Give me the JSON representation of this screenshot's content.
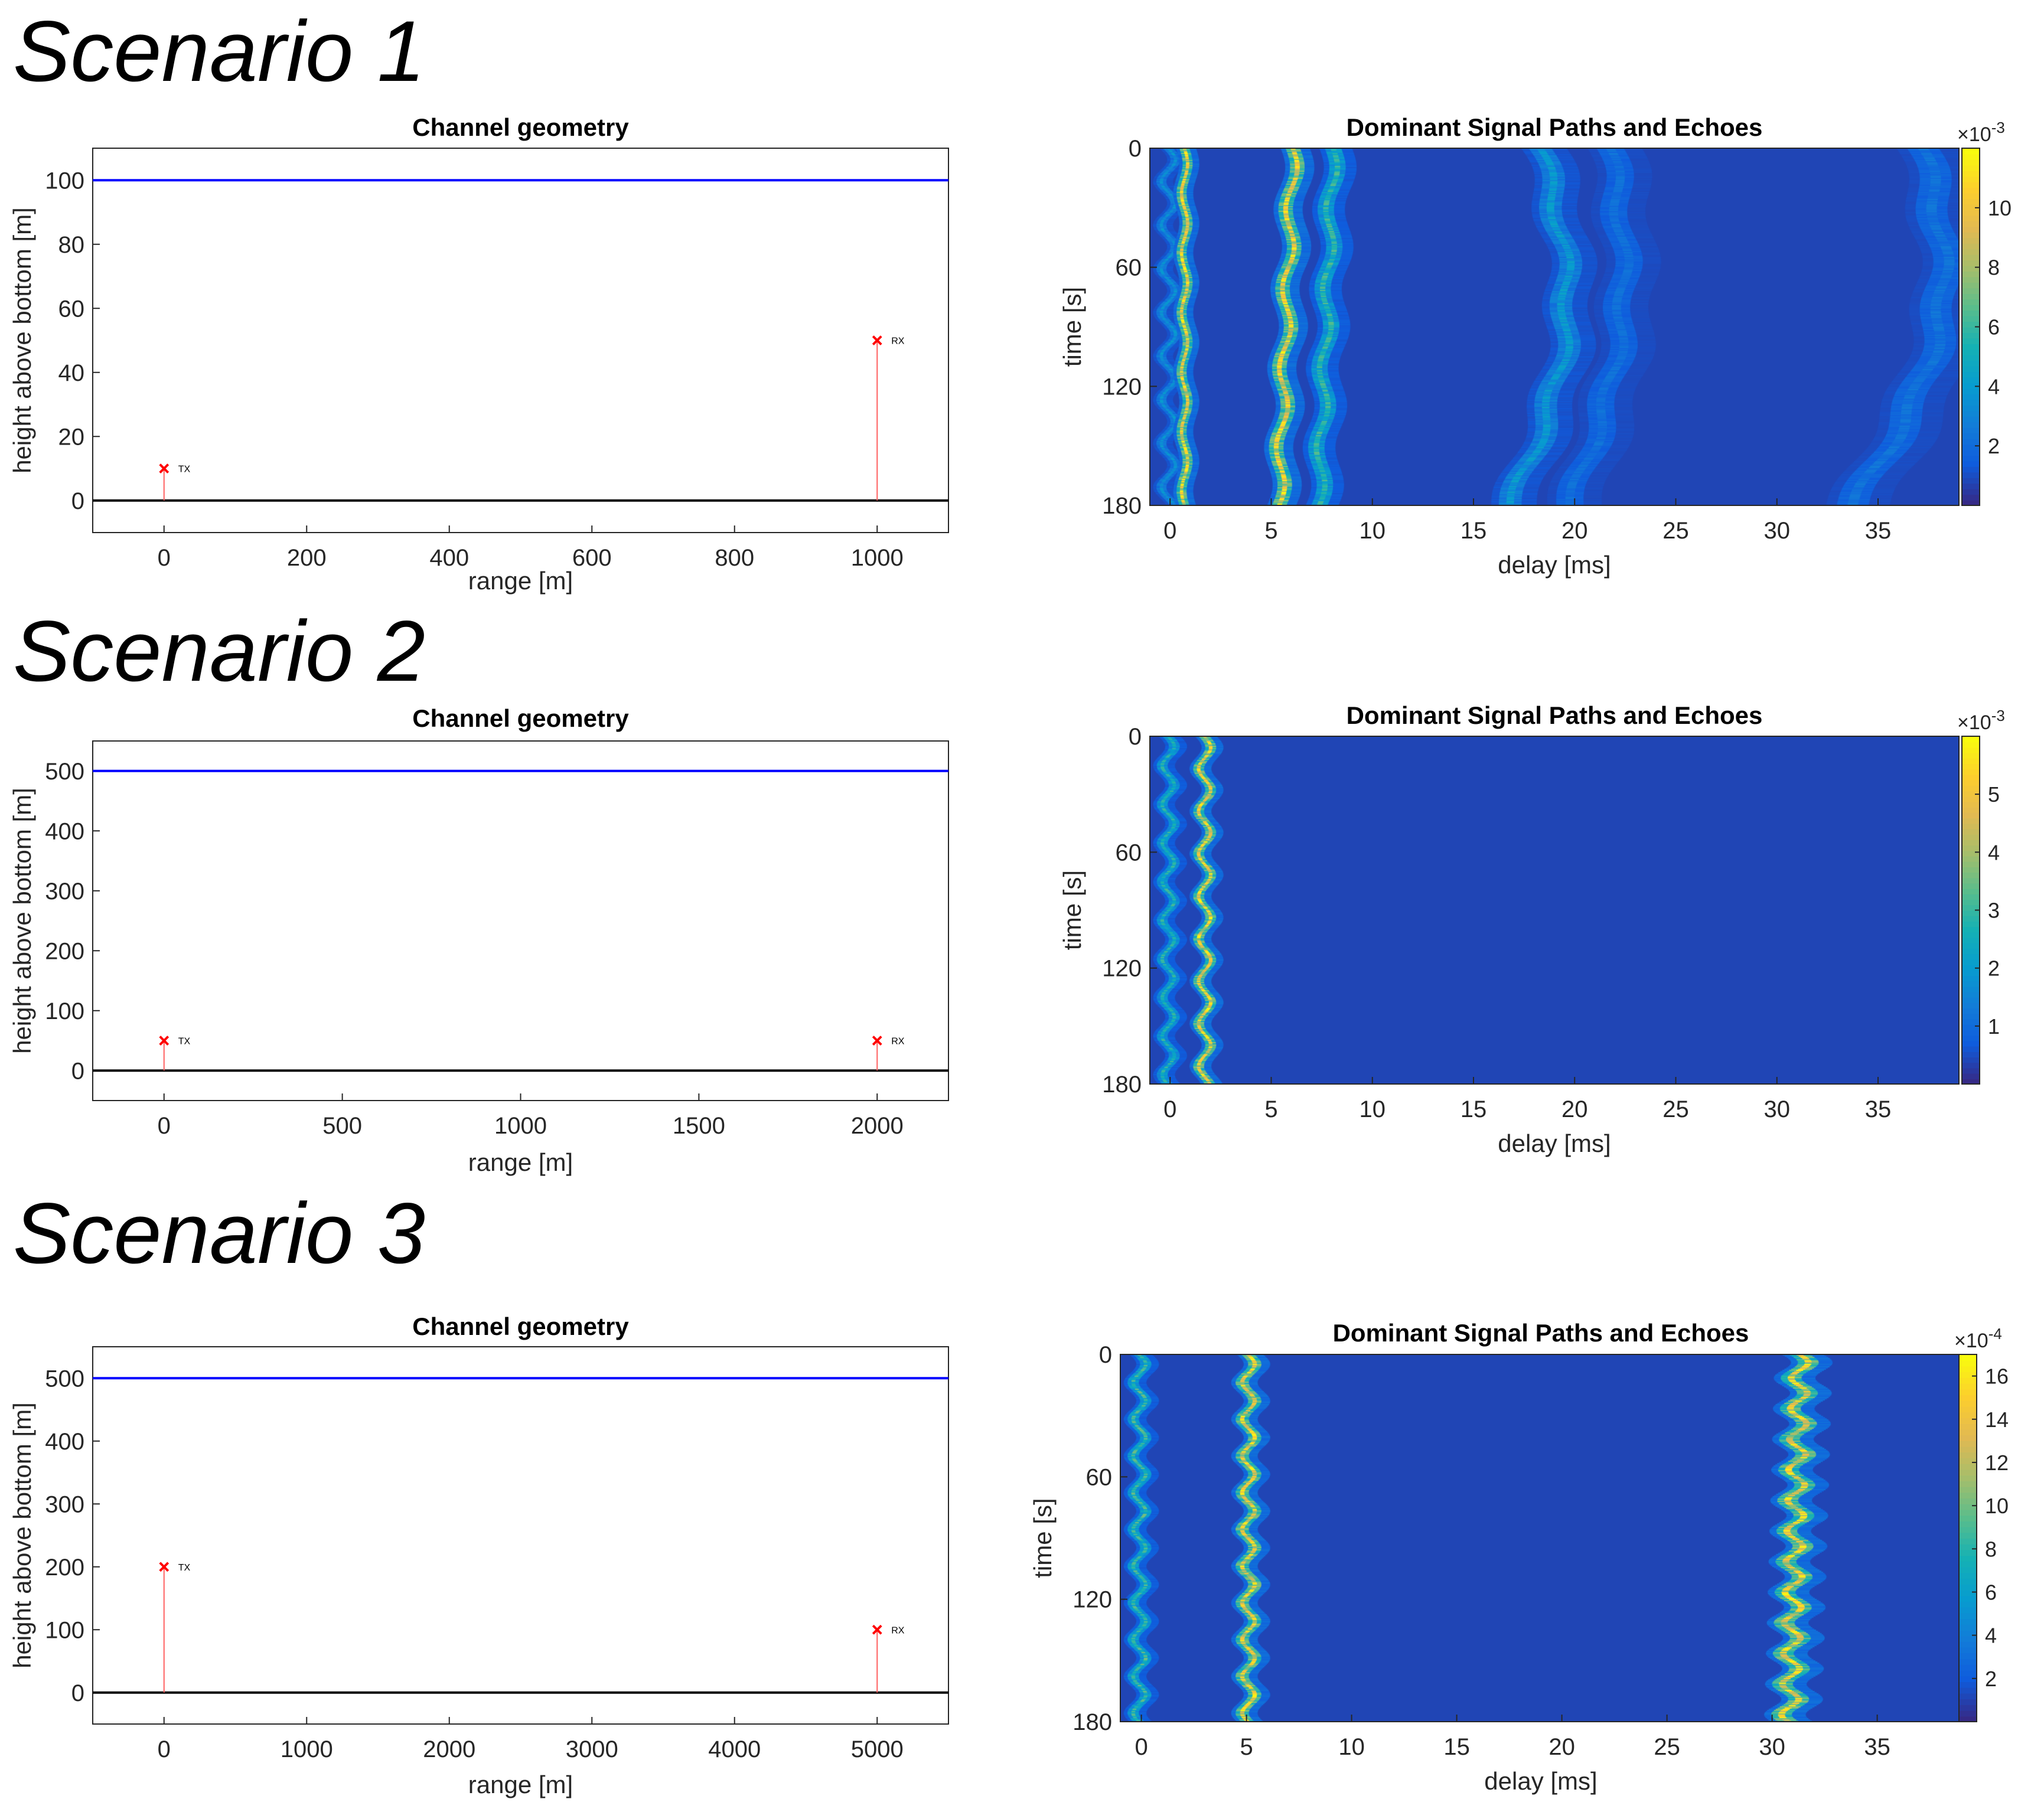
{
  "scenarios": [
    {
      "title": "Scenario 1",
      "geometry": {
        "type": "line",
        "title": "Channel geometry",
        "xlabel": "range [m]",
        "ylabel": "height above bottom [m]",
        "xlim": [
          -100,
          1100
        ],
        "ylim": [
          -10,
          110
        ],
        "xticks": [
          0,
          200,
          400,
          600,
          800,
          1000
        ],
        "yticks": [
          0,
          20,
          40,
          60,
          80,
          100
        ],
        "surface": 100,
        "bottom": 0,
        "tx": {
          "label": "TX",
          "x": 0,
          "y": 10
        },
        "rx": {
          "label": "RX",
          "x": 1000,
          "y": 50
        }
      },
      "heatmap": {
        "type": "heatmap",
        "title": "Dominant Signal Paths and Echoes",
        "xlabel": "delay [ms]",
        "ylabel": "time [s]",
        "xlim": [
          -1,
          39
        ],
        "ylim": [
          0,
          180
        ],
        "xticks": [
          0,
          5,
          10,
          15,
          20,
          25,
          30,
          35
        ],
        "yticks": [
          0,
          60,
          120,
          180
        ],
        "cbar_exp": "×10",
        "cbar_exp_sup": "-3",
        "clim": [
          0,
          0.012
        ],
        "cbar_ticks": [
          2,
          4,
          6,
          8,
          10
        ],
        "paths": [
          {
            "delay0": 0,
            "delay1": 0,
            "amp": 2.0,
            "wob": 0.35,
            "per": 22,
            "w": 0.11
          },
          {
            "delay0": 0.8,
            "delay1": 0.8,
            "amp": 6.5,
            "wob": 0.15,
            "per": 30,
            "w": 0.11
          },
          {
            "delay0": 6.2,
            "delay1": 5.5,
            "amp": 6.5,
            "wob": 0.25,
            "per": 40,
            "w": 0.16
          },
          {
            "delay0": 8.2,
            "delay1": 7.5,
            "amp": 3.5,
            "wob": 0.25,
            "per": 40,
            "w": 0.18
          },
          {
            "delay0": 18.5,
            "delay1": 17.0,
            "amp": 2.2,
            "wob": 0.3,
            "per": 45,
            "w": 0.25,
            "bow": 2.0
          },
          {
            "delay0": 22.0,
            "delay1": 20.0,
            "amp": 1.0,
            "wob": 0.3,
            "per": 45,
            "w": 0.3,
            "bow": 1.5
          },
          {
            "delay0": 37.5,
            "delay1": 34.0,
            "amp": 1.1,
            "wob": 0.3,
            "per": 45,
            "w": 0.35,
            "bow": 2.5
          }
        ]
      }
    },
    {
      "title": "Scenario 2",
      "geometry": {
        "type": "line",
        "title": "Channel geometry",
        "xlabel": "range [m]",
        "ylabel": "height above bottom [m]",
        "xlim": [
          -200,
          2200
        ],
        "ylim": [
          -50,
          550
        ],
        "xticks": [
          0,
          500,
          1000,
          1500,
          2000
        ],
        "yticks": [
          0,
          100,
          200,
          300,
          400,
          500
        ],
        "surface": 500,
        "bottom": 0,
        "tx": {
          "label": "TX",
          "x": 0,
          "y": 50
        },
        "rx": {
          "label": "RX",
          "x": 2000,
          "y": 50
        }
      },
      "heatmap": {
        "type": "heatmap",
        "title": "Dominant Signal Paths and Echoes",
        "xlabel": "delay [ms]",
        "ylabel": "time [s]",
        "xlim": [
          -1,
          39
        ],
        "ylim": [
          0,
          180
        ],
        "xticks": [
          0,
          5,
          10,
          15,
          20,
          25,
          30,
          35
        ],
        "yticks": [
          0,
          60,
          120,
          180
        ],
        "cbar_exp": "×10",
        "cbar_exp_sup": "-3",
        "clim": [
          0,
          0.006
        ],
        "cbar_ticks": [
          1,
          2,
          3,
          4,
          5
        ],
        "paths": [
          {
            "delay0": 0,
            "delay1": 0,
            "amp": 2.0,
            "wob": 0.3,
            "per": 20,
            "w": 0.12
          },
          {
            "delay0": 1.8,
            "delay1": 1.8,
            "amp": 4.0,
            "wob": 0.3,
            "per": 22,
            "w": 0.12
          }
        ]
      }
    },
    {
      "title": "Scenario 3",
      "geometry": {
        "type": "line",
        "title": "Channel geometry",
        "xlabel": "range [m]",
        "ylabel": "height above bottom [m]",
        "xlim": [
          -500,
          5500
        ],
        "ylim": [
          -50,
          550
        ],
        "xticks": [
          0,
          1000,
          2000,
          3000,
          4000,
          5000
        ],
        "yticks": [
          0,
          100,
          200,
          300,
          400,
          500
        ],
        "surface": 500,
        "bottom": 0,
        "tx": {
          "label": "TX",
          "x": 0,
          "y": 200
        },
        "rx": {
          "label": "RX",
          "x": 5000,
          "y": 100
        }
      },
      "heatmap": {
        "type": "heatmap",
        "title": "Dominant Signal Paths and Echoes",
        "xlabel": "delay [ms]",
        "ylabel": "time [s]",
        "xlim": [
          -1,
          39
        ],
        "ylim": [
          0,
          180
        ],
        "xticks": [
          0,
          5,
          10,
          15,
          20,
          25,
          30,
          35
        ],
        "yticks": [
          0,
          60,
          120,
          180
        ],
        "cbar_exp": "×10",
        "cbar_exp_sup": "-4",
        "clim": [
          0,
          0.0017
        ],
        "cbar_ticks": [
          2,
          4,
          6,
          8,
          10,
          12,
          14,
          16
        ],
        "paths": [
          {
            "delay0": 0,
            "delay1": 0,
            "amp": 4.0,
            "wob": 0.3,
            "per": 18,
            "w": 0.12
          },
          {
            "delay0": 5.2,
            "delay1": 5.2,
            "amp": 7.0,
            "wob": 0.3,
            "per": 18,
            "w": 0.14
          },
          {
            "delay0": 31.5,
            "delay1": 31.0,
            "amp": 7.0,
            "wob": 0.4,
            "per": 15,
            "w": 0.22
          }
        ]
      }
    }
  ]
}
